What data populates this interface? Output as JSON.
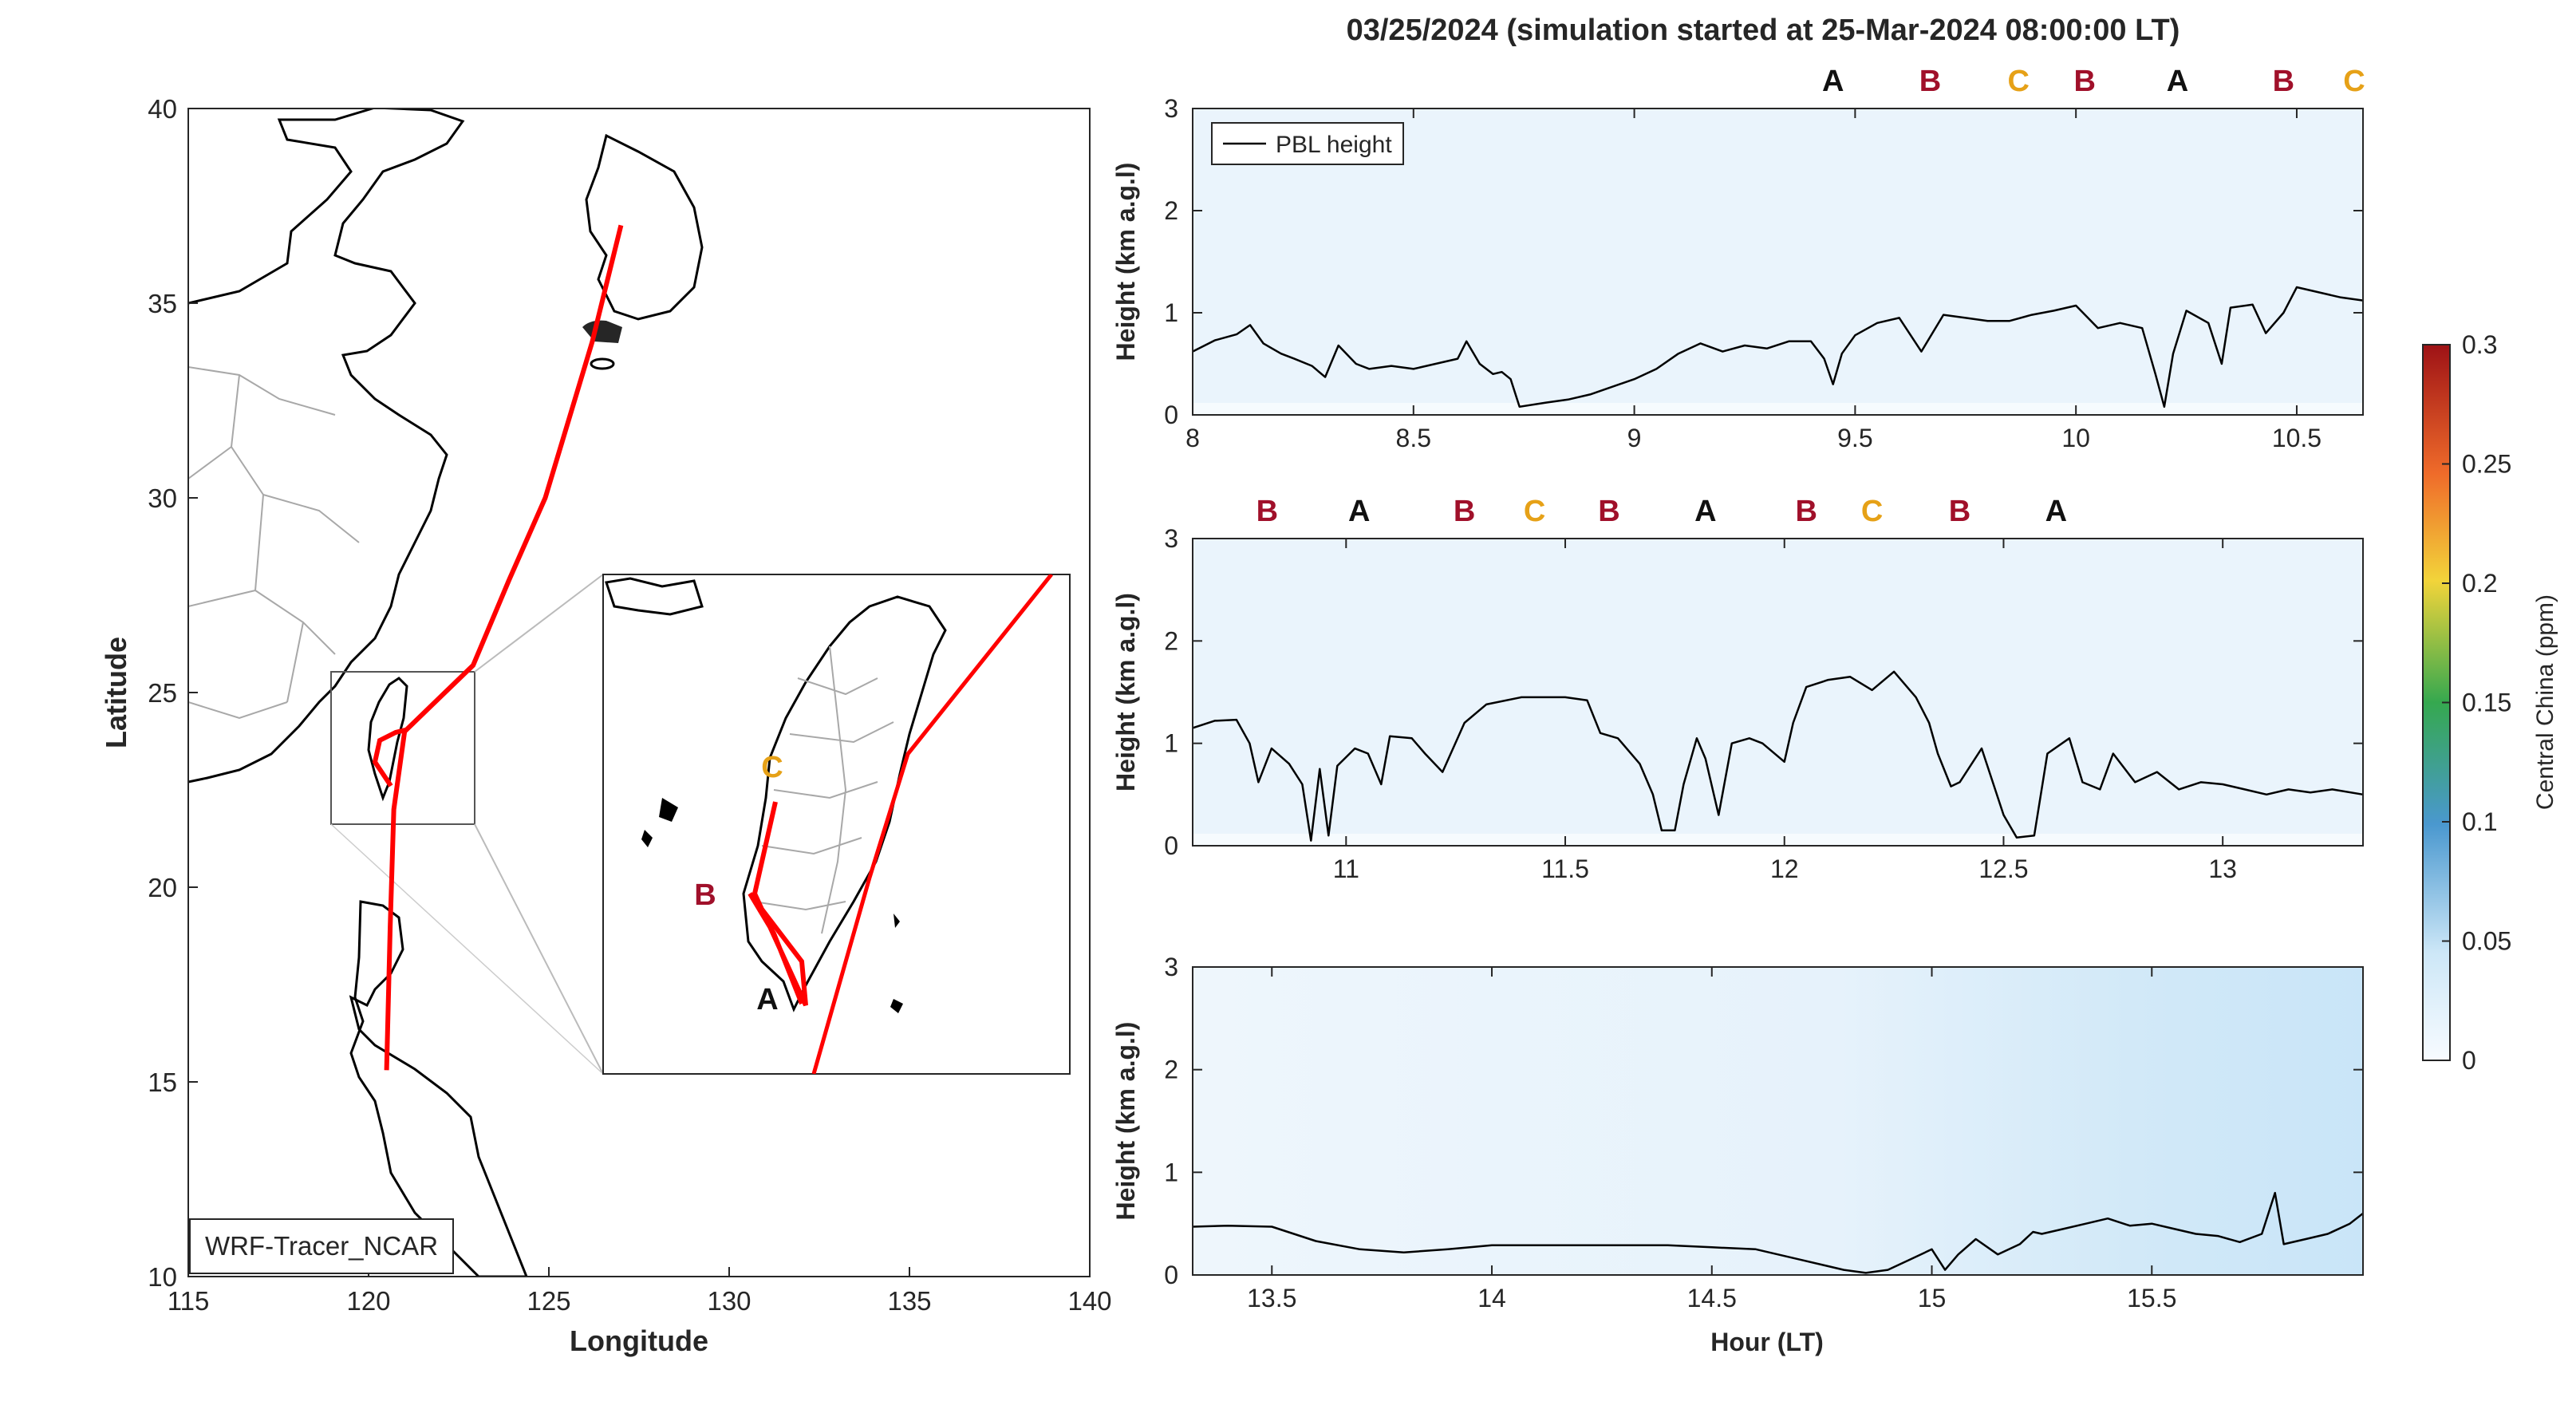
{
  "title": "03/25/2024 (simulation started at 25-Mar-2024 08:00:00 LT)",
  "map": {
    "xlabel": "Longitude",
    "ylabel": "Latitude",
    "xticks": [
      115,
      120,
      125,
      130,
      135,
      140
    ],
    "yticks": [
      10,
      15,
      20,
      25,
      30,
      35,
      40
    ],
    "xlim": [
      115,
      140
    ],
    "ylim": [
      10,
      40
    ],
    "model_label": "WRF-Tracer_NCAR",
    "track_color": "#ff0000",
    "track": [
      [
        127.0,
        37.0
      ],
      [
        126.2,
        34.0
      ],
      [
        124.9,
        30.0
      ],
      [
        123.9,
        27.9
      ],
      [
        122.9,
        25.7
      ],
      [
        121.0,
        24.0
      ],
      [
        120.7,
        22.0
      ],
      [
        120.6,
        19.0
      ],
      [
        120.5,
        15.3
      ]
    ],
    "inset_markers": [
      {
        "label": "C",
        "color": "#e6a117"
      },
      {
        "label": "B",
        "color": "#a0102a"
      },
      {
        "label": "A",
        "color": "#111111"
      }
    ]
  },
  "colorbar": {
    "label": "Central China (ppm)",
    "ticks": [
      0,
      0.05,
      0.1,
      0.15,
      0.2,
      0.25,
      0.3
    ],
    "range": [
      0,
      0.3
    ]
  },
  "panels": [
    {
      "ylabel": "Height (km a.g.l)",
      "xlabel": "",
      "xlim": [
        8.0,
        10.65
      ],
      "ylim": [
        0,
        3
      ],
      "xticks": [
        8,
        8.5,
        9,
        9.5,
        10,
        10.5
      ],
      "yticks": [
        0,
        1,
        2,
        3
      ],
      "legend": "PBL height",
      "markers": [
        {
          "t": 9.45,
          "label": "A"
        },
        {
          "t": 9.67,
          "label": "B"
        },
        {
          "t": 9.87,
          "label": "C"
        },
        {
          "t": 10.02,
          "label": "B"
        },
        {
          "t": 10.23,
          "label": "A"
        },
        {
          "t": 10.47,
          "label": "B"
        },
        {
          "t": 10.63,
          "label": "C"
        }
      ],
      "pbl": [
        [
          8.0,
          0.62
        ],
        [
          8.05,
          0.73
        ],
        [
          8.1,
          0.79
        ],
        [
          8.13,
          0.88
        ],
        [
          8.16,
          0.7
        ],
        [
          8.2,
          0.6
        ],
        [
          8.23,
          0.55
        ],
        [
          8.27,
          0.48
        ],
        [
          8.3,
          0.37
        ],
        [
          8.33,
          0.68
        ],
        [
          8.37,
          0.5
        ],
        [
          8.4,
          0.45
        ],
        [
          8.45,
          0.48
        ],
        [
          8.5,
          0.45
        ],
        [
          8.55,
          0.5
        ],
        [
          8.6,
          0.55
        ],
        [
          8.62,
          0.72
        ],
        [
          8.65,
          0.5
        ],
        [
          8.68,
          0.4
        ],
        [
          8.7,
          0.42
        ],
        [
          8.72,
          0.35
        ],
        [
          8.74,
          0.08
        ],
        [
          8.8,
          0.12
        ],
        [
          8.85,
          0.15
        ],
        [
          8.9,
          0.2
        ],
        [
          9.0,
          0.35
        ],
        [
          9.05,
          0.45
        ],
        [
          9.1,
          0.6
        ],
        [
          9.15,
          0.7
        ],
        [
          9.2,
          0.62
        ],
        [
          9.25,
          0.68
        ],
        [
          9.3,
          0.65
        ],
        [
          9.35,
          0.72
        ],
        [
          9.4,
          0.72
        ],
        [
          9.43,
          0.55
        ],
        [
          9.45,
          0.3
        ],
        [
          9.47,
          0.6
        ],
        [
          9.5,
          0.78
        ],
        [
          9.55,
          0.9
        ],
        [
          9.6,
          0.95
        ],
        [
          9.65,
          0.62
        ],
        [
          9.7,
          0.98
        ],
        [
          9.75,
          0.95
        ],
        [
          9.8,
          0.92
        ],
        [
          9.85,
          0.92
        ],
        [
          9.9,
          0.98
        ],
        [
          9.95,
          1.02
        ],
        [
          10.0,
          1.07
        ],
        [
          10.05,
          0.85
        ],
        [
          10.1,
          0.9
        ],
        [
          10.15,
          0.85
        ],
        [
          10.18,
          0.4
        ],
        [
          10.2,
          0.08
        ],
        [
          10.22,
          0.6
        ],
        [
          10.25,
          1.02
        ],
        [
          10.3,
          0.9
        ],
        [
          10.33,
          0.5
        ],
        [
          10.35,
          1.05
        ],
        [
          10.4,
          1.08
        ],
        [
          10.43,
          0.8
        ],
        [
          10.47,
          1.0
        ],
        [
          10.5,
          1.25
        ],
        [
          10.55,
          1.2
        ],
        [
          10.6,
          1.15
        ],
        [
          10.65,
          1.12
        ]
      ]
    },
    {
      "ylabel": "Height (km a.g.l)",
      "xlabel": "",
      "xlim": [
        10.65,
        13.32
      ],
      "ylim": [
        0,
        3
      ],
      "xticks": [
        11,
        11.5,
        12,
        12.5,
        13
      ],
      "yticks": [
        0,
        1,
        2,
        3
      ],
      "markers": [
        {
          "t": 10.82,
          "label": "B"
        },
        {
          "t": 11.03,
          "label": "A"
        },
        {
          "t": 11.27,
          "label": "B"
        },
        {
          "t": 11.43,
          "label": "C"
        },
        {
          "t": 11.6,
          "label": "B"
        },
        {
          "t": 11.82,
          "label": "A"
        },
        {
          "t": 12.05,
          "label": "B"
        },
        {
          "t": 12.2,
          "label": "C"
        },
        {
          "t": 12.4,
          "label": "B"
        },
        {
          "t": 12.62,
          "label": "A"
        }
      ],
      "pbl": [
        [
          10.65,
          1.15
        ],
        [
          10.7,
          1.22
        ],
        [
          10.75,
          1.23
        ],
        [
          10.78,
          1.0
        ],
        [
          10.8,
          0.62
        ],
        [
          10.83,
          0.95
        ],
        [
          10.87,
          0.8
        ],
        [
          10.9,
          0.6
        ],
        [
          10.92,
          0.05
        ],
        [
          10.94,
          0.75
        ],
        [
          10.96,
          0.1
        ],
        [
          10.98,
          0.78
        ],
        [
          11.02,
          0.95
        ],
        [
          11.05,
          0.9
        ],
        [
          11.08,
          0.6
        ],
        [
          11.1,
          1.07
        ],
        [
          11.15,
          1.05
        ],
        [
          11.18,
          0.9
        ],
        [
          11.22,
          0.72
        ],
        [
          11.27,
          1.2
        ],
        [
          11.32,
          1.38
        ],
        [
          11.4,
          1.45
        ],
        [
          11.5,
          1.45
        ],
        [
          11.55,
          1.42
        ],
        [
          11.58,
          1.1
        ],
        [
          11.62,
          1.05
        ],
        [
          11.67,
          0.8
        ],
        [
          11.7,
          0.5
        ],
        [
          11.72,
          0.15
        ],
        [
          11.75,
          0.15
        ],
        [
          11.77,
          0.6
        ],
        [
          11.8,
          1.05
        ],
        [
          11.82,
          0.85
        ],
        [
          11.85,
          0.3
        ],
        [
          11.88,
          1.0
        ],
        [
          11.92,
          1.05
        ],
        [
          11.95,
          1.0
        ],
        [
          12.0,
          0.82
        ],
        [
          12.02,
          1.2
        ],
        [
          12.05,
          1.55
        ],
        [
          12.1,
          1.62
        ],
        [
          12.15,
          1.65
        ],
        [
          12.2,
          1.52
        ],
        [
          12.25,
          1.7
        ],
        [
          12.3,
          1.45
        ],
        [
          12.33,
          1.2
        ],
        [
          12.35,
          0.9
        ],
        [
          12.38,
          0.58
        ],
        [
          12.4,
          0.62
        ],
        [
          12.45,
          0.95
        ],
        [
          12.5,
          0.3
        ],
        [
          12.53,
          0.08
        ],
        [
          12.57,
          0.1
        ],
        [
          12.6,
          0.9
        ],
        [
          12.65,
          1.05
        ],
        [
          12.68,
          0.62
        ],
        [
          12.72,
          0.55
        ],
        [
          12.75,
          0.9
        ],
        [
          12.8,
          0.62
        ],
        [
          12.85,
          0.72
        ],
        [
          12.9,
          0.55
        ],
        [
          12.95,
          0.62
        ],
        [
          13.0,
          0.6
        ],
        [
          13.05,
          0.55
        ],
        [
          13.1,
          0.5
        ],
        [
          13.15,
          0.55
        ],
        [
          13.2,
          0.52
        ],
        [
          13.25,
          0.55
        ],
        [
          13.32,
          0.5
        ]
      ]
    },
    {
      "ylabel": "Height (km a.g.l)",
      "xlabel": "Hour (LT)",
      "xlim": [
        13.32,
        15.98
      ],
      "ylim": [
        0,
        3
      ],
      "xticks": [
        13.5,
        14,
        14.5,
        15,
        15.5
      ],
      "yticks": [
        0,
        1,
        2,
        3
      ],
      "markers": [],
      "pbl": [
        [
          13.32,
          0.47
        ],
        [
          13.4,
          0.48
        ],
        [
          13.5,
          0.47
        ],
        [
          13.6,
          0.33
        ],
        [
          13.7,
          0.25
        ],
        [
          13.8,
          0.22
        ],
        [
          13.9,
          0.25
        ],
        [
          14.0,
          0.29
        ],
        [
          14.1,
          0.29
        ],
        [
          14.2,
          0.29
        ],
        [
          14.3,
          0.29
        ],
        [
          14.4,
          0.29
        ],
        [
          14.5,
          0.27
        ],
        [
          14.6,
          0.25
        ],
        [
          14.7,
          0.15
        ],
        [
          14.8,
          0.05
        ],
        [
          14.85,
          0.02
        ],
        [
          14.9,
          0.05
        ],
        [
          14.95,
          0.15
        ],
        [
          15.0,
          0.25
        ],
        [
          15.03,
          0.05
        ],
        [
          15.06,
          0.2
        ],
        [
          15.1,
          0.35
        ],
        [
          15.15,
          0.2
        ],
        [
          15.2,
          0.3
        ],
        [
          15.23,
          0.42
        ],
        [
          15.25,
          0.4
        ],
        [
          15.3,
          0.45
        ],
        [
          15.35,
          0.5
        ],
        [
          15.4,
          0.55
        ],
        [
          15.45,
          0.48
        ],
        [
          15.5,
          0.5
        ],
        [
          15.55,
          0.45
        ],
        [
          15.6,
          0.4
        ],
        [
          15.65,
          0.38
        ],
        [
          15.7,
          0.32
        ],
        [
          15.75,
          0.4
        ],
        [
          15.78,
          0.8
        ],
        [
          15.8,
          0.3
        ],
        [
          15.85,
          0.35
        ],
        [
          15.9,
          0.4
        ],
        [
          15.95,
          0.5
        ],
        [
          15.98,
          0.6
        ]
      ]
    }
  ]
}
